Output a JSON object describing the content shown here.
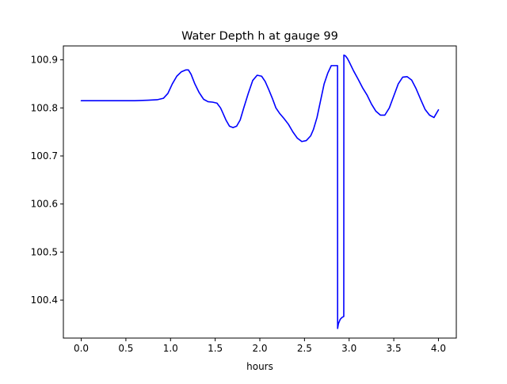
{
  "chart_data": {
    "type": "line",
    "title": "Water Depth h at gauge 99",
    "xlabel": "hours",
    "ylabel": "",
    "xlim": [
      -0.2,
      4.2
    ],
    "ylim": [
      100.321,
      100.929
    ],
    "xticks": [
      0.0,
      0.5,
      1.0,
      1.5,
      2.0,
      2.5,
      3.0,
      3.5,
      4.0
    ],
    "xtick_labels": [
      "0.0",
      "0.5",
      "1.0",
      "1.5",
      "2.0",
      "2.5",
      "3.0",
      "3.5",
      "4.0"
    ],
    "yticks": [
      100.4,
      100.5,
      100.6,
      100.7,
      100.8,
      100.9
    ],
    "ytick_labels": [
      "100.4",
      "100.5",
      "100.6",
      "100.7",
      "100.8",
      "100.9"
    ],
    "grid": false,
    "colors": {
      "line": "#0000ff",
      "axes": "#000000",
      "background": "#ffffff"
    },
    "series": [
      {
        "x": [
          0.0,
          0.3,
          0.6,
          0.75,
          0.85,
          0.92,
          0.97,
          1.02,
          1.07,
          1.12,
          1.17,
          1.2,
          1.23,
          1.27,
          1.32,
          1.37,
          1.42,
          1.47,
          1.52,
          1.56,
          1.58,
          1.62,
          1.66,
          1.7,
          1.74,
          1.78,
          1.82,
          1.87,
          1.92,
          1.97,
          2.02,
          2.06,
          2.1,
          2.14,
          2.18,
          2.22,
          2.27,
          2.32,
          2.37,
          2.42,
          2.47,
          2.52,
          2.57,
          2.6,
          2.64,
          2.68,
          2.72,
          2.76,
          2.8,
          2.84,
          2.87,
          2.871,
          2.88,
          2.9,
          2.92,
          2.94,
          2.941,
          2.96,
          2.98,
          3.0,
          3.05,
          3.1,
          3.15,
          3.2,
          3.25,
          3.3,
          3.35,
          3.4,
          3.45,
          3.5,
          3.55,
          3.6,
          3.65,
          3.7,
          3.75,
          3.8,
          3.85,
          3.9,
          3.95,
          4.0
        ],
        "y": [
          100.815,
          100.815,
          100.815,
          100.816,
          100.817,
          100.82,
          100.83,
          100.85,
          100.866,
          100.875,
          100.879,
          100.879,
          100.87,
          100.851,
          100.832,
          100.818,
          100.813,
          100.812,
          100.81,
          100.8,
          100.792,
          100.775,
          100.762,
          100.759,
          100.762,
          100.775,
          100.8,
          100.83,
          100.857,
          100.868,
          100.866,
          100.855,
          100.838,
          100.82,
          100.8,
          100.789,
          100.778,
          100.766,
          100.75,
          100.737,
          100.73,
          100.732,
          100.742,
          100.755,
          100.78,
          100.815,
          100.85,
          100.872,
          100.888,
          100.888,
          100.888,
          100.341,
          100.351,
          100.36,
          100.364,
          100.366,
          100.91,
          100.908,
          100.903,
          100.896,
          100.877,
          100.86,
          100.842,
          100.827,
          100.808,
          100.793,
          100.785,
          100.785,
          100.8,
          100.825,
          100.85,
          100.864,
          100.865,
          100.858,
          100.84,
          100.818,
          100.797,
          100.785,
          100.78,
          100.796
        ]
      }
    ]
  }
}
